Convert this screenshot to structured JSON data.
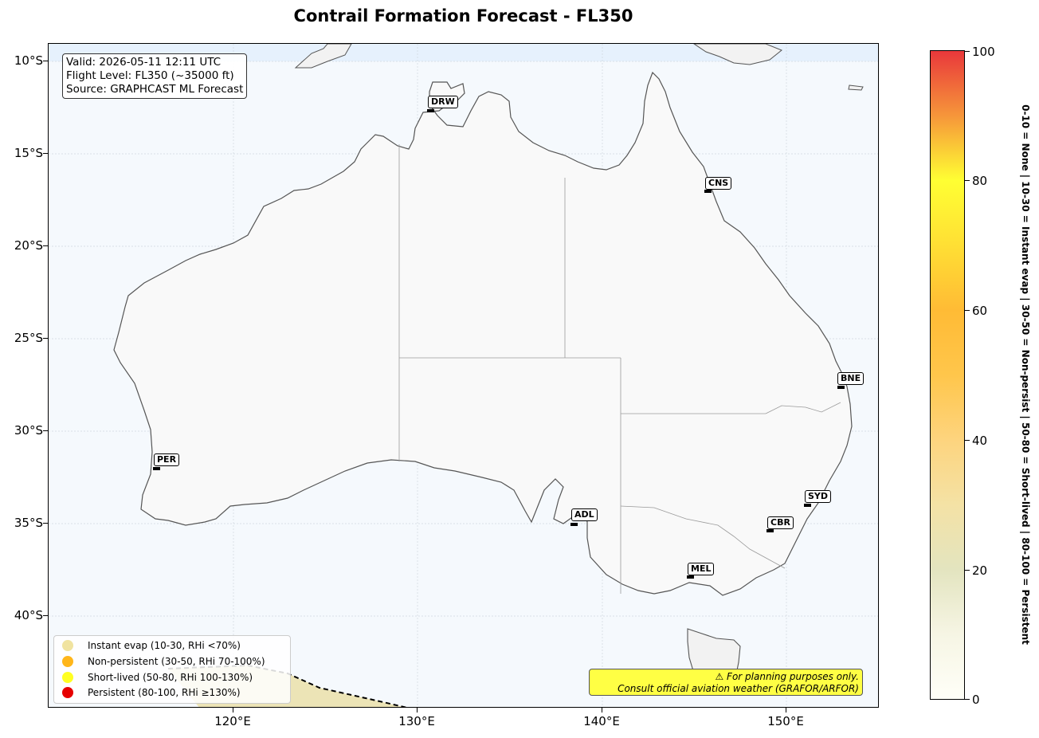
{
  "title": "Contrail Formation Forecast - FL350",
  "info": {
    "valid": "Valid: 2026-05-11 12:11 UTC",
    "flight_level": "Flight Level: FL350 (~35000 ft)",
    "source": "Source: GRAPHCAST ML Forecast"
  },
  "lat_labels": [
    "10°S",
    "15°S",
    "20°S",
    "25°S",
    "30°S",
    "35°S",
    "40°S"
  ],
  "lon_labels": [
    "120°E",
    "130°E",
    "140°E",
    "150°E"
  ],
  "cities": [
    {
      "code": "DRW"
    },
    {
      "code": "CNS"
    },
    {
      "code": "BNE"
    },
    {
      "code": "PER"
    },
    {
      "code": "ADL"
    },
    {
      "code": "SYD"
    },
    {
      "code": "CBR"
    },
    {
      "code": "MEL"
    }
  ],
  "legend": [
    {
      "label": "Instant evap (10-30, RHi <70%)",
      "color": "#f0e3a0"
    },
    {
      "label": "Non-persistent (30-50, RHi 70-100%)",
      "color": "#ffb61a"
    },
    {
      "label": "Short-lived (50-80, RHi 100-130%)",
      "color": "#ffff22"
    },
    {
      "label": "Persistent (80-100, RHi ≥130%)",
      "color": "#e60000"
    }
  ],
  "warning": {
    "line1": "⚠ For planning purposes only.",
    "line2": "Consult official aviation weather (GRAFOR/ARFOR)"
  },
  "colorbar": {
    "ticks": [
      "0",
      "20",
      "40",
      "60",
      "80",
      "100"
    ],
    "caption": "0-10 = None  |  10-30 = Instant evap  |  30-50 = Non-persist  |  50-80 = Short-lived  |  80-100 = Persistent"
  },
  "colors": {
    "ocean": "#f5f9fd",
    "land": "#f9f9f9",
    "coast": "#555555",
    "contrail_zone": "#ece4b6"
  }
}
